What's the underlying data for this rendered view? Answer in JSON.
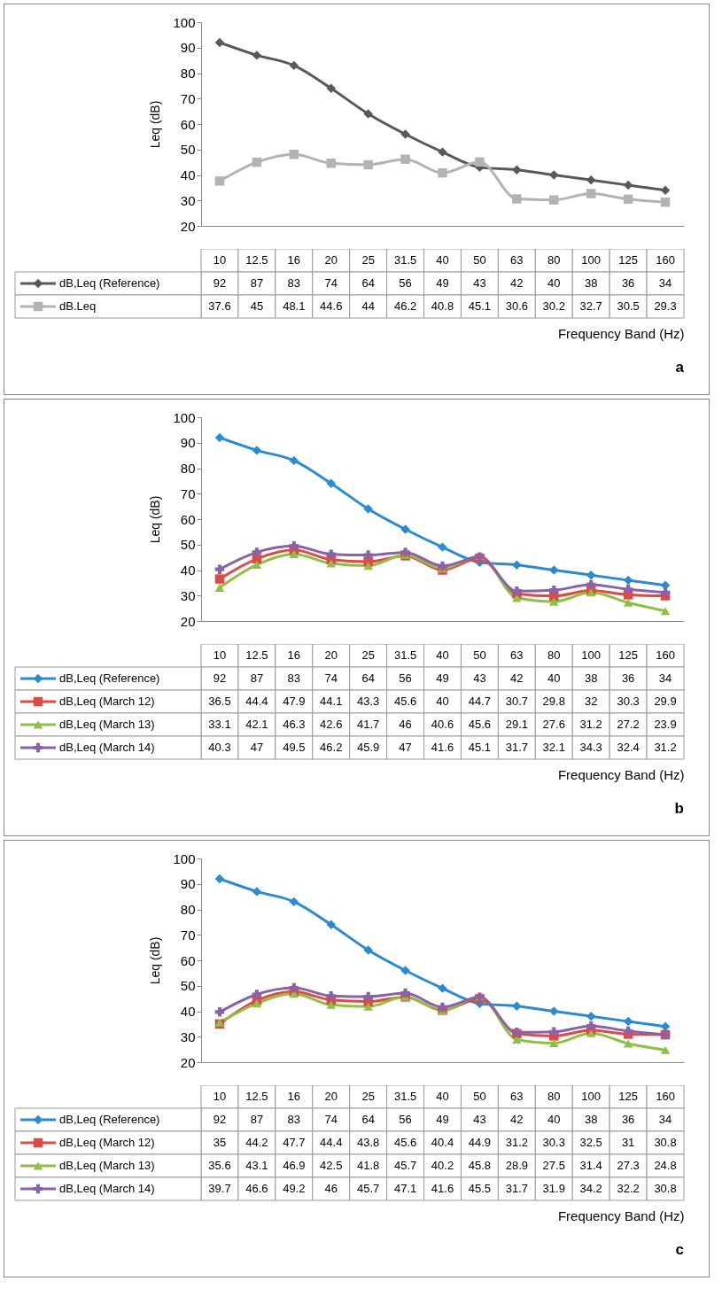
{
  "chart_data": [
    {
      "type": "line",
      "ylabel": "Leq (dB)",
      "xlabel": "Frequency Band (Hz)",
      "categories": [
        "10",
        "12.5",
        "16",
        "20",
        "25",
        "31.5",
        "40",
        "50",
        "63",
        "80",
        "100",
        "125",
        "160"
      ],
      "ylim": [
        20,
        100
      ],
      "yticks": [
        20,
        30,
        40,
        50,
        60,
        70,
        80,
        90,
        100
      ],
      "data_labels": true,
      "legend": "bottom left",
      "annotations": [
        "a"
      ],
      "series": [
        {
          "name": "dB,Leq (Reference)",
          "color": "#595959",
          "marker": "diamond",
          "values": [
            92,
            87,
            83,
            74,
            64,
            56,
            49,
            43,
            42,
            40,
            38,
            36,
            34
          ]
        },
        {
          "name": "dB.Leq",
          "color": "#b3b3b3",
          "marker": "square",
          "values": [
            37.6,
            45,
            48.1,
            44.6,
            44,
            46.2,
            40.8,
            45.1,
            30.6,
            30.2,
            32.7,
            30.5,
            29.3
          ]
        }
      ]
    },
    {
      "type": "line",
      "ylabel": "Leq (dB)",
      "xlabel": "Frequency Band (Hz)",
      "categories": [
        "10",
        "12.5",
        "16",
        "20",
        "25",
        "31.5",
        "40",
        "50",
        "63",
        "80",
        "100",
        "125",
        "160"
      ],
      "ylim": [
        20,
        100
      ],
      "yticks": [
        20,
        30,
        40,
        50,
        60,
        70,
        80,
        90,
        100
      ],
      "data_labels": true,
      "legend": "bottom left",
      "annotations": [
        "b"
      ],
      "series": [
        {
          "name": "dB,Leq (Reference)",
          "color": "#2a8bd0",
          "marker": "diamond",
          "values": [
            92,
            87,
            83,
            74,
            64,
            56,
            49,
            43,
            42,
            40,
            38,
            36,
            34
          ]
        },
        {
          "name": "dB,Leq (March 12)",
          "color": "#dd4b45",
          "marker": "square",
          "values": [
            36.5,
            44.4,
            47.9,
            44.1,
            43.3,
            45.6,
            40,
            44.7,
            30.7,
            29.8,
            32,
            30.3,
            29.9
          ]
        },
        {
          "name": "dB,Leq (March 13)",
          "color": "#8ec044",
          "marker": "triangle",
          "values": [
            33.1,
            42.1,
            46.3,
            42.6,
            41.7,
            46,
            40.6,
            45.6,
            29.1,
            27.6,
            31.2,
            27.2,
            23.9
          ]
        },
        {
          "name": "dB,Leq (March 14)",
          "color": "#8a62a8",
          "marker": "cross",
          "values": [
            40.3,
            47,
            49.5,
            46.2,
            45.9,
            47,
            41.6,
            45.1,
            31.7,
            32.1,
            34.3,
            32.4,
            31.2
          ]
        }
      ]
    },
    {
      "type": "line",
      "ylabel": "Leq (dB)",
      "xlabel": "Frequency Band (Hz)",
      "categories": [
        "10",
        "12.5",
        "16",
        "20",
        "25",
        "31.5",
        "40",
        "50",
        "63",
        "80",
        "100",
        "125",
        "160"
      ],
      "ylim": [
        20,
        100
      ],
      "yticks": [
        20,
        30,
        40,
        50,
        60,
        70,
        80,
        90,
        100
      ],
      "data_labels": true,
      "legend": "bottom left",
      "annotations": [
        "c"
      ],
      "series": [
        {
          "name": "dB,Leq (Reference)",
          "color": "#2a8bd0",
          "marker": "diamond",
          "values": [
            92,
            87,
            83,
            74,
            64,
            56,
            49,
            43,
            42,
            40,
            38,
            36,
            34
          ]
        },
        {
          "name": "dB,Leq (March 12)",
          "color": "#dd4b45",
          "marker": "square",
          "values": [
            35,
            44.2,
            47.7,
            44.4,
            43.8,
            45.6,
            40.4,
            44.9,
            31.2,
            30.3,
            32.5,
            31,
            30.8
          ]
        },
        {
          "name": "dB,Leq (March 13)",
          "color": "#8ec044",
          "marker": "triangle",
          "values": [
            35.6,
            43.1,
            46.9,
            42.5,
            41.8,
            45.7,
            40.2,
            45.8,
            28.9,
            27.5,
            31.4,
            27.3,
            24.8
          ]
        },
        {
          "name": "dB,Leq (March 14)",
          "color": "#8a62a8",
          "marker": "cross",
          "values": [
            39.7,
            46.6,
            49.2,
            46,
            45.7,
            47.1,
            41.6,
            45.5,
            31.7,
            31.9,
            34.2,
            32.2,
            30.8
          ]
        }
      ]
    }
  ]
}
